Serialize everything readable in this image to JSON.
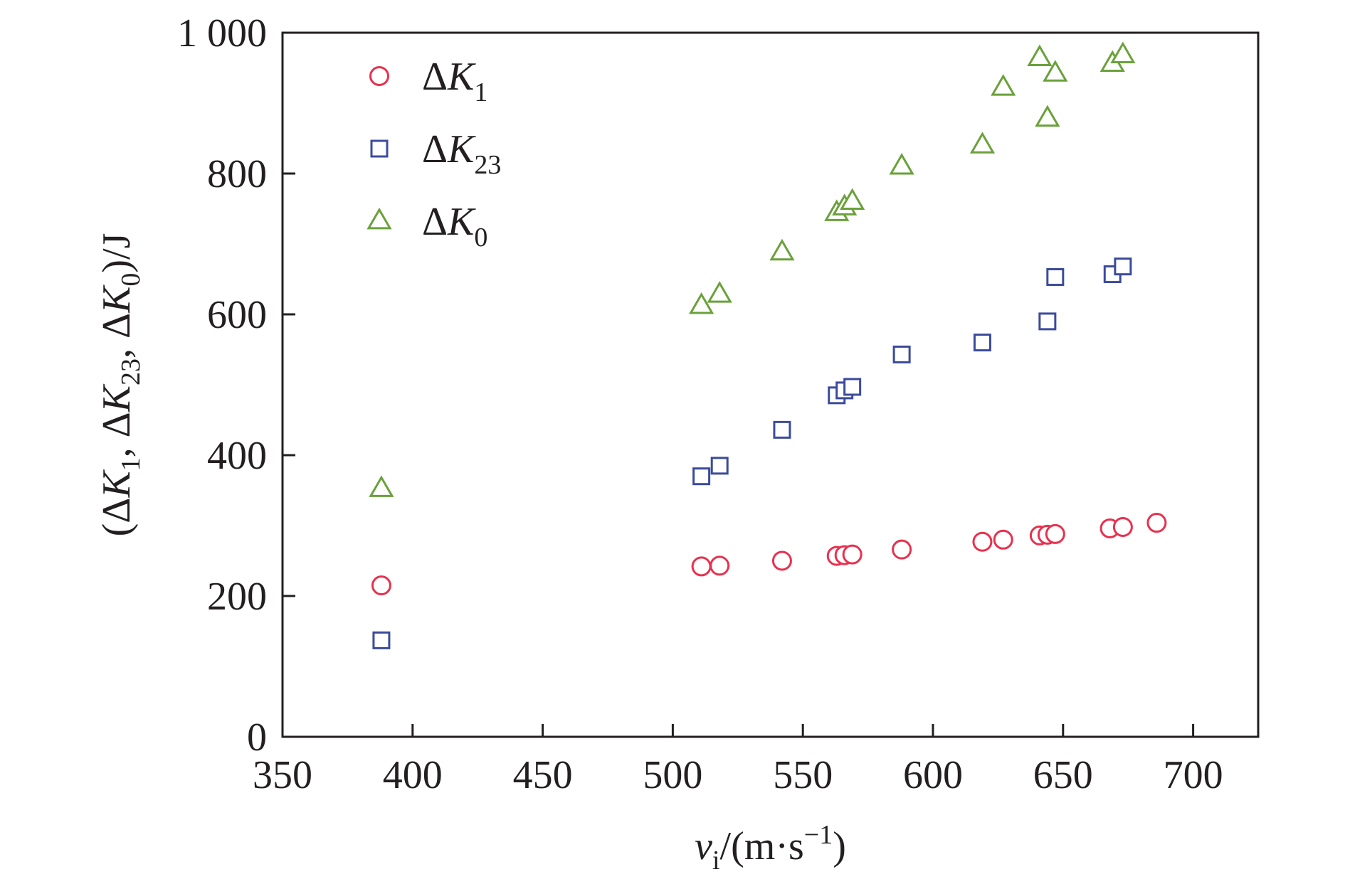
{
  "chart_data": {
    "type": "scatter",
    "title": "",
    "xlabel": {
      "var": "v",
      "sub": "i",
      "unit_pre": "/(m·s",
      "unit_sup": "−1",
      "unit_post": ")"
    },
    "ylabel": "(ΔK1, ΔK23, ΔK0)/J",
    "ylabel_parts": [
      {
        "t": "(Δ",
        "style": "normal"
      },
      {
        "t": "K",
        "style": "italic"
      },
      {
        "t": "1",
        "style": "sub"
      },
      {
        "t": ", Δ",
        "style": "normal"
      },
      {
        "t": "K",
        "style": "italic"
      },
      {
        "t": "23",
        "style": "sub"
      },
      {
        "t": ", Δ",
        "style": "normal"
      },
      {
        "t": "K",
        "style": "italic"
      },
      {
        "t": "0",
        "style": "sub"
      },
      {
        "t": ")/J",
        "style": "normal"
      }
    ],
    "xlim": [
      350,
      725
    ],
    "ylim": [
      0,
      1000
    ],
    "xticks": [
      350,
      400,
      450,
      500,
      550,
      600,
      650,
      700
    ],
    "xtick_labels": [
      "350",
      "400",
      "450",
      "500",
      "550",
      "600",
      "650",
      "700"
    ],
    "yticks": [
      0,
      200,
      400,
      600,
      800,
      1000
    ],
    "ytick_labels": [
      "0",
      "200",
      "400",
      "600",
      "800",
      "1 000"
    ],
    "grid": false,
    "legend_position": "top-left",
    "series": [
      {
        "name": "ΔK1",
        "label_main": "ΔK",
        "label_sub": "1",
        "marker": "circle",
        "color": "#e8314f",
        "fill_color": "#ffffff",
        "points": [
          [
            388,
            215
          ],
          [
            511,
            242
          ],
          [
            518,
            243
          ],
          [
            542,
            250
          ],
          [
            563,
            257
          ],
          [
            566,
            258
          ],
          [
            569,
            259
          ],
          [
            588,
            266
          ],
          [
            619,
            277
          ],
          [
            627,
            280
          ],
          [
            641,
            286
          ],
          [
            644,
            287
          ],
          [
            647,
            288
          ],
          [
            668,
            296
          ],
          [
            673,
            298
          ],
          [
            686,
            304
          ]
        ]
      },
      {
        "name": "ΔK23",
        "label_main": "ΔK",
        "label_sub": "23",
        "marker": "square",
        "color": "#3b4b9c",
        "fill_color": "#ffffff",
        "points": [
          [
            388,
            137
          ],
          [
            511,
            370
          ],
          [
            518,
            385
          ],
          [
            542,
            436
          ],
          [
            563,
            485
          ],
          [
            566,
            492
          ],
          [
            569,
            497
          ],
          [
            588,
            543
          ],
          [
            619,
            560
          ],
          [
            644,
            590
          ],
          [
            647,
            653
          ],
          [
            669,
            657
          ],
          [
            673,
            668
          ]
        ]
      },
      {
        "name": "ΔK0",
        "label_main": "ΔK",
        "label_sub": "0",
        "marker": "triangle",
        "color": "#6aa13a",
        "fill_color": "#ffffff",
        "points": [
          [
            388,
            352
          ],
          [
            511,
            612
          ],
          [
            518,
            628
          ],
          [
            542,
            688
          ],
          [
            563,
            744
          ],
          [
            566,
            752
          ],
          [
            569,
            760
          ],
          [
            588,
            810
          ],
          [
            619,
            840
          ],
          [
            627,
            922
          ],
          [
            641,
            964
          ],
          [
            644,
            878
          ],
          [
            647,
            942
          ],
          [
            669,
            956
          ],
          [
            673,
            968
          ]
        ]
      }
    ]
  }
}
